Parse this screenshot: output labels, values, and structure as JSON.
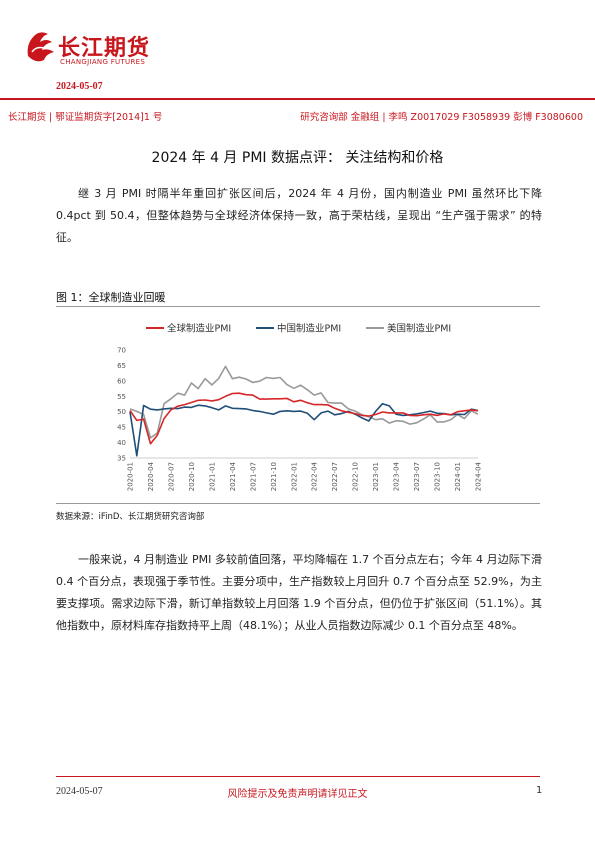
{
  "header": {
    "logo_cn": "长江期货",
    "logo_en": "CHANGJIANG FUTURES",
    "date": "2024-05-07",
    "meta_left": "长江期货 | 鄂证监期货字[2014]1 号",
    "meta_right": "研究咨询部 金融组 | 李鸣 Z0017029 F3058939 彭博 F3080600"
  },
  "article": {
    "title": "2024 年 4 月 PMI 数据点评： 关注结构和价格",
    "para1": "继 3 月 PMI 时隔半年重回扩张区间后，2024 年 4 月份，国内制造业 PMI 虽然环比下降 0.4pct 到 50.4，但整体趋势与全球经济体保持一致，高于荣枯线，呈现出 “生产强于需求” 的特征。",
    "figure_title": "图 1：全球制造业回暖",
    "source": "数据来源：iFinD、长江期货研究咨询部",
    "para2": "一般来说，4 月制造业 PMI 多较前值回落，平均降幅在 1.7 个百分点左右；今年 4 月边际下滑 0.4 个百分点，表现强于季节性。主要分项中，生产指数较上月回升 0.7 个百分点至 52.9%，为主要支撑项。需求边际下滑，新订单指数较上月回落 1.9 个百分点，但仍位于扩张区间（51.1%）。其他指数中，原材料库存指数持平上周（48.1%）；从业人员指数边际减少 0.1 个百分点至 48%。"
  },
  "footer": {
    "date": "2024-05-07",
    "disclaimer": "风险提示及免责声明请详见正文",
    "page": "1"
  },
  "chart_data": {
    "type": "line",
    "title": "",
    "xlabel": "",
    "ylabel": "",
    "ylim": [
      35,
      70
    ],
    "yticks": [
      35,
      40,
      45,
      50,
      55,
      60,
      65,
      70
    ],
    "legend_position": "top",
    "x_tick_labels": [
      "2020-01",
      "2020-04",
      "2020-07",
      "2020-10",
      "2021-01",
      "2021-04",
      "2021-07",
      "2021-10",
      "2022-01",
      "2022-04",
      "2022-07",
      "2022-10",
      "2023-01",
      "2023-04",
      "2023-07",
      "2023-10",
      "2024-01",
      "2024-04"
    ],
    "x": [
      "2020-01",
      "2020-02",
      "2020-03",
      "2020-04",
      "2020-05",
      "2020-06",
      "2020-07",
      "2020-08",
      "2020-09",
      "2020-10",
      "2020-11",
      "2020-12",
      "2021-01",
      "2021-02",
      "2021-03",
      "2021-04",
      "2021-05",
      "2021-06",
      "2021-07",
      "2021-08",
      "2021-09",
      "2021-10",
      "2021-11",
      "2021-12",
      "2022-01",
      "2022-02",
      "2022-03",
      "2022-04",
      "2022-05",
      "2022-06",
      "2022-07",
      "2022-08",
      "2022-09",
      "2022-10",
      "2022-11",
      "2022-12",
      "2023-01",
      "2023-02",
      "2023-03",
      "2023-04",
      "2023-05",
      "2023-06",
      "2023-07",
      "2023-08",
      "2023-09",
      "2023-10",
      "2023-11",
      "2023-12",
      "2024-01",
      "2024-02",
      "2024-03",
      "2024-04"
    ],
    "series": [
      {
        "name": "全球制造业PMI",
        "color": "#d62728",
        "values": [
          50.4,
          47.2,
          47.6,
          39.6,
          42.4,
          47.8,
          50.6,
          51.8,
          52.3,
          53.0,
          53.7,
          53.8,
          53.5,
          53.9,
          55.0,
          55.9,
          56.0,
          55.5,
          55.4,
          54.1,
          54.1,
          54.2,
          54.2,
          54.3,
          53.2,
          53.7,
          52.9,
          52.3,
          52.3,
          52.2,
          51.1,
          50.3,
          49.8,
          49.4,
          48.8,
          48.6,
          49.1,
          49.9,
          49.6,
          49.6,
          49.6,
          48.8,
          48.7,
          49.0,
          49.2,
          48.8,
          49.3,
          49.0,
          50.0,
          50.3,
          50.6,
          50.3
        ]
      },
      {
        "name": "中国制造业PMI",
        "color": "#1f4e79",
        "values": [
          50.0,
          35.7,
          52.0,
          50.8,
          50.6,
          50.9,
          51.1,
          51.0,
          51.5,
          51.4,
          52.1,
          51.9,
          51.3,
          50.6,
          51.9,
          51.1,
          51.0,
          50.9,
          50.4,
          50.1,
          49.6,
          49.2,
          50.1,
          50.3,
          50.1,
          50.2,
          49.5,
          47.4,
          49.6,
          50.2,
          49.0,
          49.4,
          50.1,
          49.2,
          48.0,
          47.0,
          50.1,
          52.6,
          51.9,
          49.2,
          48.8,
          49.0,
          49.3,
          49.7,
          50.2,
          49.5,
          49.4,
          49.0,
          49.2,
          49.1,
          50.8,
          50.4
        ]
      },
      {
        "name": "美国制造业PMI",
        "color": "#999999",
        "values": [
          50.9,
          50.1,
          49.1,
          41.5,
          43.1,
          52.6,
          54.2,
          56.0,
          55.4,
          59.3,
          57.5,
          60.7,
          58.7,
          60.8,
          64.7,
          60.7,
          61.2,
          60.6,
          59.5,
          59.9,
          61.1,
          60.8,
          61.1,
          58.8,
          57.6,
          58.6,
          57.1,
          55.4,
          56.1,
          53.0,
          52.8,
          52.8,
          50.9,
          50.2,
          49.0,
          48.4,
          47.4,
          47.7,
          46.3,
          47.1,
          46.9,
          46.0,
          46.4,
          47.6,
          49.0,
          46.7,
          46.7,
          47.4,
          49.1,
          47.8,
          50.3,
          49.2
        ]
      }
    ]
  }
}
